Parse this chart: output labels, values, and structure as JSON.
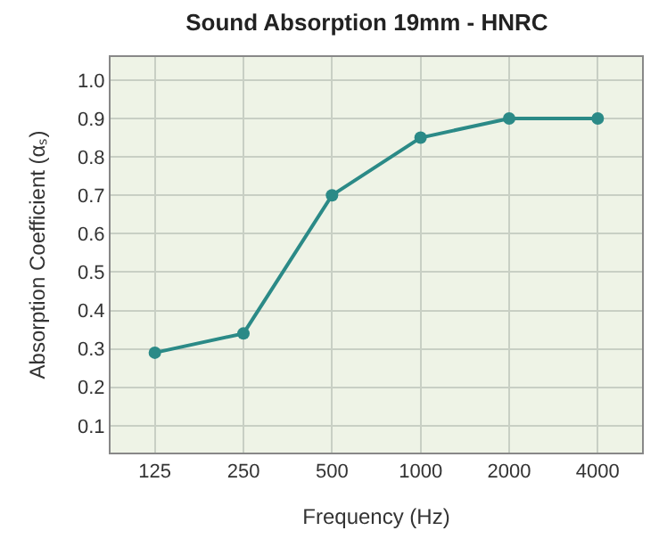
{
  "chart_data": {
    "type": "line",
    "title": "Sound Absorption 19mm - HNRC",
    "xlabel": "Frequency (Hz)",
    "ylabel": "Absorption Coefficient (αₛ)",
    "categories": [
      "125",
      "250",
      "500",
      "1000",
      "2000",
      "4000"
    ],
    "series": [
      {
        "color": "#2b8a87",
        "values": [
          0.29,
          0.34,
          0.7,
          0.85,
          0.9,
          0.9
        ]
      }
    ],
    "ylim": [
      0.03,
      1.06
    ],
    "yticks": [
      0.1,
      0.2,
      0.3,
      0.4,
      0.5,
      0.6,
      0.7,
      0.8,
      0.9,
      {
        "value": 1,
        "label": "1.0"
      }
    ],
    "grid": true,
    "marker": "circle",
    "line_style": "solid",
    "legend": false
  }
}
